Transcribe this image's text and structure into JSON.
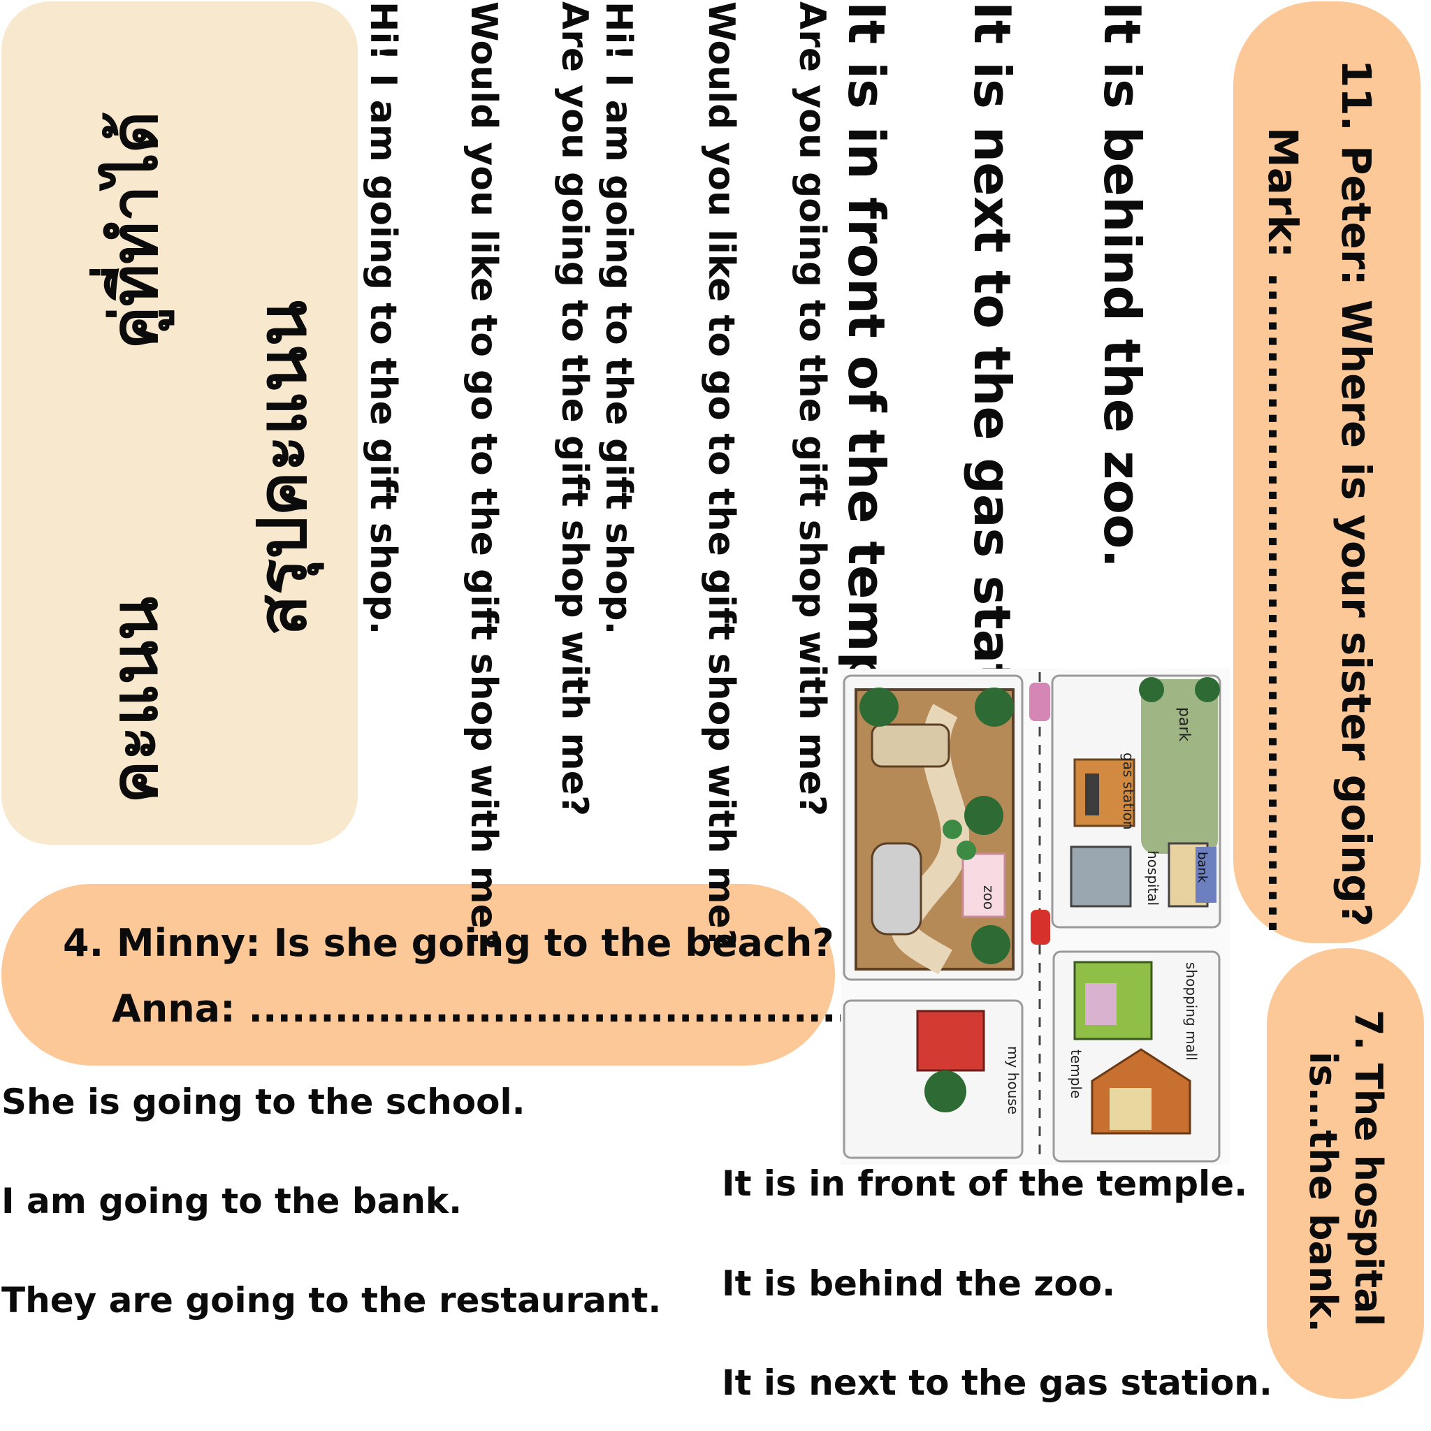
{
  "score_card": {
    "heading": "สรุปคะแนน",
    "group_label": "คู่ที่ทำได้",
    "points_label": "คะแนน"
  },
  "question_11": {
    "question": "11. Peter: Where is your sister going?",
    "answer_prompt": "Mark: ..........................................."
  },
  "question_7": {
    "line1": "7. The hospital",
    "line2": "is...the bank."
  },
  "question_4": {
    "question": "4. Minny: Is she going to the beach?",
    "answer_prompt": "Anna: ............................................"
  },
  "vertical_choices": [
    "It is behind the zoo.",
    "It is next to the gas station.",
    "It is in front of the temple.",
    "Are you going to the gift shop with me?",
    "Would you like to go to the gift shop with me?",
    "Hi! I am going to the gift shop.",
    "Are you going to the gift shop with me?",
    "Would you like to go to the gift shop with me?",
    "Hi! I am going to the gift shop."
  ],
  "choices_left": [
    "She is going to the school.",
    "I am going to the bank.",
    "They are going to the restaurant."
  ],
  "choices_right": [
    "It is in front of the temple.",
    "It is behind the zoo.",
    "It is next to the gas station."
  ],
  "map": {
    "labels": {
      "park": "park",
      "gas_station": "gas station",
      "hospital": "hospital",
      "bank": "bank",
      "zoo": "zoo",
      "shopping_mall": "shopping mall",
      "temple": "temple",
      "my_house": "my house"
    }
  },
  "colors": {
    "cream_card": "#f8e8cd",
    "peach_card": "#fcc898",
    "text": "#0b0b0b"
  }
}
